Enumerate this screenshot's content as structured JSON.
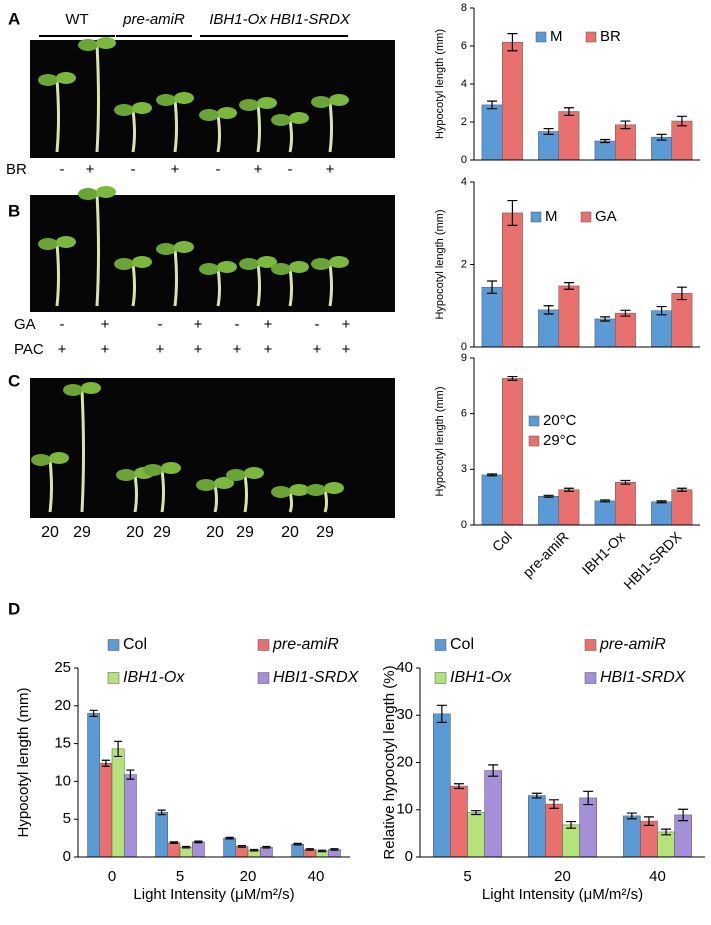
{
  "panels": [
    "A",
    "B",
    "C",
    "D"
  ],
  "photos": [
    {
      "genotypes": [
        "WT",
        "pre-amiR",
        "IBH1-Ox",
        "HBI1-SRDX"
      ],
      "rows": [
        {
          "label": "BR",
          "marks": [
            "-",
            "+",
            "-",
            "+",
            "-",
            "+",
            "-",
            "+"
          ]
        }
      ]
    },
    {
      "rows": [
        {
          "label": "GA",
          "marks": [
            "-",
            "+",
            "-",
            "+",
            "-",
            "+",
            "-",
            "+"
          ]
        },
        {
          "label": "PAC",
          "marks": [
            "+",
            "+",
            "+",
            "+",
            "+",
            "+",
            "+",
            "+"
          ]
        }
      ]
    },
    {
      "labels": [
        "20",
        "29",
        "20",
        "29",
        "20",
        "29",
        "20",
        "29"
      ]
    }
  ],
  "chart_data": [
    {
      "type": "bar",
      "ylabel": "Hypocotyl length (mm)",
      "categories": [
        null,
        null,
        null,
        null
      ],
      "ylim": [
        0,
        8
      ],
      "yticks": [
        0,
        2,
        4,
        6,
        8
      ],
      "series": [
        {
          "name": "M",
          "color": "#5b9bd5",
          "values": [
            2.9,
            1.5,
            1.0,
            1.2
          ],
          "errors": [
            0.2,
            0.15,
            0.08,
            0.15
          ]
        },
        {
          "name": "BR",
          "color": "#e8716f",
          "values": [
            6.2,
            2.55,
            1.85,
            2.05
          ],
          "errors": [
            0.45,
            0.2,
            0.2,
            0.25
          ]
        }
      ]
    },
    {
      "type": "bar",
      "ylabel": "Hypocotyl length (mm)",
      "categories": [
        null,
        null,
        null,
        null
      ],
      "ylim": [
        0,
        4
      ],
      "yticks": [
        0,
        2,
        4
      ],
      "series": [
        {
          "name": "M",
          "color": "#5b9bd5",
          "values": [
            1.45,
            0.9,
            0.68,
            0.88
          ],
          "errors": [
            0.15,
            0.1,
            0.05,
            0.1
          ]
        },
        {
          "name": "GA",
          "color": "#e8716f",
          "values": [
            3.25,
            1.48,
            0.82,
            1.3
          ],
          "errors": [
            0.3,
            0.08,
            0.07,
            0.15
          ]
        }
      ]
    },
    {
      "type": "bar",
      "ylabel": "Hypocotyl length (mm)",
      "categories": [
        "Col",
        "pre-amiR",
        "IBH1-Ox",
        "HBI1-SRDX"
      ],
      "ylim": [
        0,
        9
      ],
      "yticks": [
        0,
        3,
        6,
        9
      ],
      "series": [
        {
          "name": "20°C",
          "color": "#5b9bd5",
          "values": [
            2.7,
            1.55,
            1.3,
            1.25
          ],
          "errors": [
            0.05,
            0.05,
            0.05,
            0.05
          ]
        },
        {
          "name": "29°C",
          "color": "#e8716f",
          "values": [
            7.9,
            1.9,
            2.3,
            1.9
          ],
          "errors": [
            0.1,
            0.08,
            0.1,
            0.08
          ]
        }
      ]
    },
    {
      "type": "bar",
      "ylabel": "Hypocotyl length (mm)",
      "xlabel": "Light Intensity (μM/m²/s)",
      "categories": [
        "0",
        "5",
        "20",
        "40"
      ],
      "ylim": [
        0,
        25
      ],
      "yticks": [
        0,
        5,
        10,
        15,
        20,
        25
      ],
      "series": [
        {
          "name": "Col",
          "color": "#5b9bd5",
          "values": [
            19,
            5.9,
            2.5,
            1.7
          ],
          "errors": [
            0.4,
            0.3,
            0.1,
            0.1
          ]
        },
        {
          "name": "pre-amiR",
          "color": "#e8716f",
          "values": [
            12.4,
            1.9,
            1.4,
            1.0
          ],
          "errors": [
            0.4,
            0.1,
            0.1,
            0.1
          ]
        },
        {
          "name": "IBH1-Ox",
          "color": "#b5e27a",
          "values": [
            14.3,
            1.3,
            0.9,
            0.8
          ],
          "errors": [
            1.0,
            0.1,
            0.1,
            0.1
          ]
        },
        {
          "name": "HBI1-SRDX",
          "color": "#a48fd8",
          "values": [
            10.9,
            2.0,
            1.3,
            1.0
          ],
          "errors": [
            0.6,
            0.1,
            0.1,
            0.1
          ]
        }
      ]
    },
    {
      "type": "bar",
      "ylabel": "Relative hypocotyl length (%)",
      "xlabel": "Light Intensity (μM/m²/s)",
      "categories": [
        "5",
        "20",
        "40"
      ],
      "ylim": [
        0,
        40
      ],
      "yticks": [
        0,
        10,
        20,
        30,
        40
      ],
      "series": [
        {
          "name": "Col",
          "color": "#5b9bd5",
          "values": [
            30.3,
            13,
            8.7
          ],
          "errors": [
            1.8,
            0.5,
            0.6
          ]
        },
        {
          "name": "pre-amiR",
          "color": "#e8716f",
          "values": [
            15,
            11.2,
            7.6
          ],
          "errors": [
            0.5,
            0.9,
            0.9
          ]
        },
        {
          "name": "IBH1-Ox",
          "color": "#b5e27a",
          "values": [
            9.4,
            6.8,
            5.3
          ],
          "errors": [
            0.4,
            0.7,
            0.6
          ]
        },
        {
          "name": "HBI1-SRDX",
          "color": "#a48fd8",
          "values": [
            18.3,
            12.5,
            8.9
          ],
          "errors": [
            1.2,
            1.4,
            1.2
          ]
        }
      ]
    }
  ]
}
